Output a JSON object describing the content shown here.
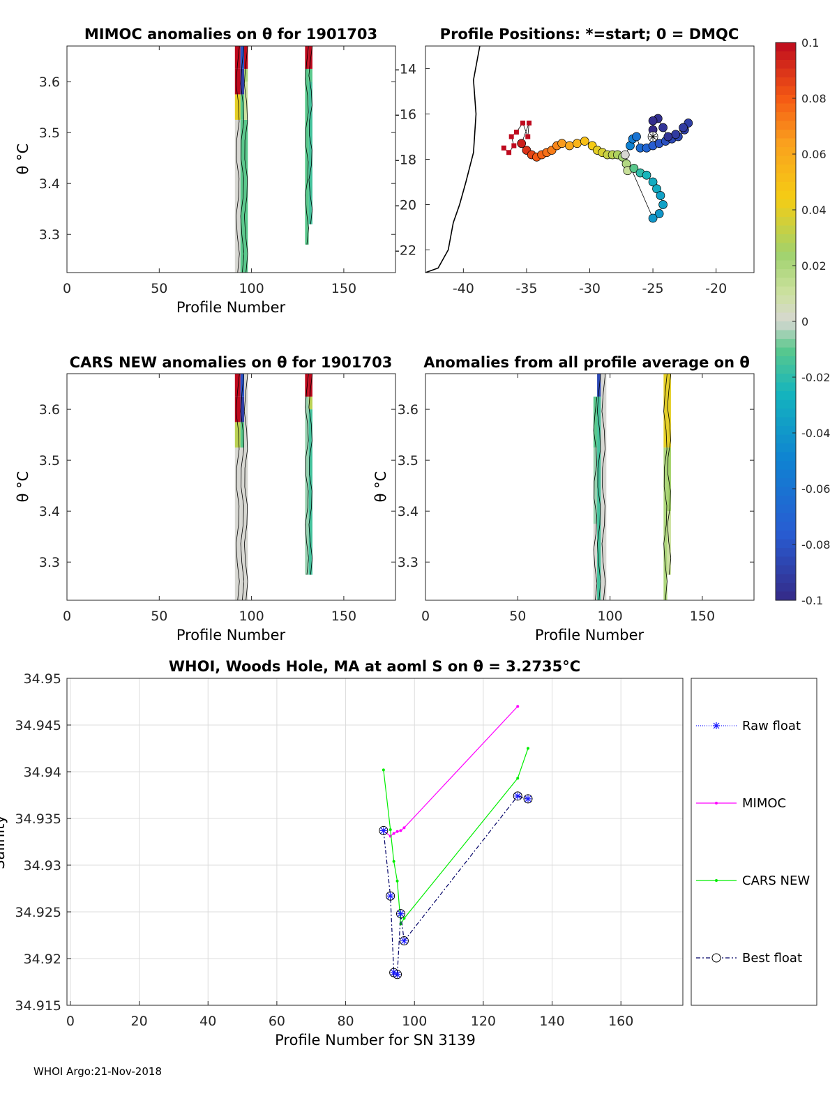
{
  "footer": "WHOI Argo:21-Nov-2018",
  "colors": {
    "raw": "#1a1aff",
    "mimoc": "#ff00ff",
    "cars": "#00ee00",
    "best": "#000066",
    "axis": "#262626",
    "grid": "#dcdcdc"
  },
  "colorbar": {
    "ticks": [
      "0.1",
      "0.08",
      "0.06",
      "0.04",
      "0.02",
      "0",
      "-0.02",
      "-0.04",
      "-0.06",
      "-0.08",
      "-0.1"
    ],
    "range": [
      -0.1,
      0.1
    ]
  },
  "panels": {
    "mimoc": {
      "title": "MIMOC anomalies on θ  for 1901703",
      "xlabel": "Profile Number",
      "ylabel": "θ °C"
    },
    "map": {
      "title": "Profile Positions: *=start; 0 = DMQC"
    },
    "cars": {
      "title": "CARS NEW anomalies on θ for 1901703",
      "xlabel": "Profile Number",
      "ylabel": "θ °C"
    },
    "avg": {
      "title": "Anomalies from all profile average on θ",
      "xlabel": "Profile Number",
      "ylabel": "θ °C"
    },
    "salinity": {
      "title": "WHOI, Woods Hole, MA at aoml S on θ = 3.2735°C",
      "xlabel": "Profile Number for SN 3139",
      "ylabel": "Salinity"
    }
  },
  "legend": [
    "Raw float",
    "MIMOC",
    "CARS NEW",
    "Best float"
  ],
  "chart_data": [
    {
      "type": "heatmap",
      "name_ref": "mimoc",
      "xlim": [
        0,
        178
      ],
      "ylim": [
        3.225,
        3.67
      ],
      "xticks": [
        "0",
        "50",
        "100",
        "150"
      ],
      "yticks": [
        "3.3",
        "3.4",
        "3.5",
        "3.6"
      ],
      "columns": [
        {
          "x": [
            91,
            94
          ],
          "cells": [
            [
              3.225,
              3.525,
              0.0
            ],
            [
              3.525,
              3.575,
              0.04
            ],
            [
              3.575,
              3.625,
              0.1
            ],
            [
              3.625,
              3.67,
              0.1
            ]
          ]
        },
        {
          "x": [
            94,
            96
          ],
          "cells": [
            [
              3.225,
              3.525,
              -0.01
            ],
            [
              3.525,
              3.575,
              -0.01
            ],
            [
              3.575,
              3.625,
              -0.09
            ],
            [
              3.625,
              3.67,
              -0.08
            ]
          ]
        },
        {
          "x": [
            96,
            98
          ],
          "cells": [
            [
              3.225,
              3.525,
              -0.01
            ],
            [
              3.525,
              3.6,
              0.01
            ],
            [
              3.6,
              3.625,
              0.02
            ],
            [
              3.625,
              3.67,
              0.1
            ]
          ]
        },
        {
          "x": [
            129,
            131
          ],
          "cells": [
            [
              3.28,
              3.625,
              -0.01
            ],
            [
              3.625,
              3.67,
              0.1
            ]
          ]
        },
        {
          "x": [
            131,
            133
          ],
          "cells": [
            [
              3.32,
              3.6,
              -0.015
            ],
            [
              3.6,
              3.625,
              -0.01
            ],
            [
              3.625,
              3.67,
              0.1
            ]
          ]
        }
      ]
    },
    {
      "type": "scatter",
      "name_ref": "map",
      "xlim": [
        -43,
        -17
      ],
      "ylim": [
        -23,
        -13
      ],
      "xticks": [
        "-40",
        "-35",
        "-30",
        "-25",
        "-20"
      ],
      "yticks": [
        "-14",
        "-16",
        "-18",
        "-20",
        "-22"
      ],
      "coastline": [
        [
          -38.7,
          -13
        ],
        [
          -39.2,
          -14.5
        ],
        [
          -39.0,
          -16
        ],
        [
          -39.2,
          -17.7
        ],
        [
          -39.8,
          -19
        ],
        [
          -40.3,
          -20
        ],
        [
          -40.8,
          -20.8
        ],
        [
          -41.2,
          -22
        ],
        [
          -42.0,
          -22.8
        ],
        [
          -43.0,
          -23
        ]
      ],
      "track": [
        [
          -36.8,
          -17.5,
          0.1
        ],
        [
          -36.4,
          -17.7,
          0.1
        ],
        [
          -36.0,
          -17.4,
          0.1
        ],
        [
          -36.2,
          -17.0,
          0.1
        ],
        [
          -35.8,
          -16.8,
          0.1
        ],
        [
          -35.3,
          -16.4,
          0.1
        ],
        [
          -34.9,
          -17.0,
          0.1
        ],
        [
          -34.8,
          -16.4,
          0.1
        ],
        [
          -35.4,
          -17.3,
          0.095
        ],
        [
          -35.0,
          -17.6,
          0.09
        ],
        [
          -34.6,
          -17.8,
          0.085
        ],
        [
          -34.2,
          -17.9,
          0.08
        ],
        [
          -33.8,
          -17.8,
          0.078
        ],
        [
          -33.4,
          -17.7,
          0.075
        ],
        [
          -33.0,
          -17.6,
          0.072
        ],
        [
          -32.6,
          -17.4,
          0.07
        ],
        [
          -32.2,
          -17.3,
          0.065
        ],
        [
          -31.6,
          -17.4,
          0.06
        ],
        [
          -31.0,
          -17.3,
          0.055
        ],
        [
          -30.4,
          -17.2,
          0.05
        ],
        [
          -29.8,
          -17.4,
          0.045
        ],
        [
          -29.4,
          -17.6,
          0.04
        ],
        [
          -29.0,
          -17.7,
          0.037
        ],
        [
          -28.6,
          -17.8,
          0.033
        ],
        [
          -28.2,
          -17.8,
          0.03
        ],
        [
          -27.8,
          -17.8,
          0.027
        ],
        [
          -27.4,
          -17.9,
          0.023
        ],
        [
          -27.1,
          -18.2,
          0.018
        ],
        [
          -27.0,
          -18.5,
          0.012
        ],
        [
          -26.5,
          -18.4,
          -0.01
        ],
        [
          -26.0,
          -18.6,
          -0.02
        ],
        [
          -25.5,
          -18.7,
          -0.025
        ],
        [
          -25.0,
          -19.0,
          -0.03
        ],
        [
          -24.7,
          -19.3,
          -0.03
        ],
        [
          -24.4,
          -19.6,
          -0.035
        ],
        [
          -24.2,
          -20.0,
          -0.035
        ],
        [
          -24.5,
          -20.4,
          -0.04
        ],
        [
          -25.0,
          -20.6,
          -0.04
        ],
        [
          -27.2,
          -17.8,
          0.0
        ],
        [
          -26.8,
          -17.4,
          -0.05
        ],
        [
          -26.6,
          -17.1,
          -0.055
        ],
        [
          -26.3,
          -17.0,
          -0.06
        ],
        [
          -26.0,
          -17.5,
          -0.065
        ],
        [
          -25.5,
          -17.5,
          -0.07
        ],
        [
          -25.0,
          -17.4,
          -0.075
        ],
        [
          -24.5,
          -17.3,
          -0.08
        ],
        [
          -24.0,
          -17.2,
          -0.082
        ],
        [
          -23.5,
          -17.1,
          -0.085
        ],
        [
          -23.0,
          -17.0,
          -0.085
        ],
        [
          -22.5,
          -16.7,
          -0.09
        ],
        [
          -22.2,
          -16.4,
          -0.09
        ],
        [
          -22.6,
          -16.6,
          -0.092
        ],
        [
          -23.2,
          -16.9,
          -0.092
        ],
        [
          -23.8,
          -17.0,
          -0.095
        ],
        [
          -24.2,
          -16.6,
          -0.095
        ],
        [
          -24.6,
          -16.2,
          -0.097
        ],
        [
          -25.0,
          -16.3,
          -0.098
        ],
        [
          -25.0,
          -16.7,
          -0.1
        ]
      ],
      "start": [
        -25.0,
        -17.0
      ]
    },
    {
      "type": "heatmap",
      "name_ref": "cars",
      "xlim": [
        0,
        178
      ],
      "ylim": [
        3.225,
        3.67
      ],
      "xticks": [
        "0",
        "50",
        "100",
        "150"
      ],
      "yticks": [
        "3.3",
        "3.4",
        "3.5",
        "3.6"
      ],
      "columns": [
        {
          "x": [
            91,
            94
          ],
          "cells": [
            [
              3.225,
              3.525,
              0.0
            ],
            [
              3.525,
              3.575,
              0.03
            ],
            [
              3.575,
              3.625,
              0.1
            ],
            [
              3.625,
              3.67,
              0.1
            ]
          ]
        },
        {
          "x": [
            94,
            96
          ],
          "cells": [
            [
              3.225,
              3.525,
              0.0
            ],
            [
              3.525,
              3.575,
              -0.01
            ],
            [
              3.575,
              3.625,
              -0.09
            ],
            [
              3.625,
              3.67,
              -0.08
            ]
          ]
        },
        {
          "x": [
            96,
            98
          ],
          "cells": [
            [
              3.225,
              3.67,
              0.0
            ]
          ]
        },
        {
          "x": [
            129,
            131
          ],
          "cells": [
            [
              3.275,
              3.625,
              -0.005
            ],
            [
              3.625,
              3.67,
              0.1
            ]
          ]
        },
        {
          "x": [
            131,
            133
          ],
          "cells": [
            [
              3.275,
              3.6,
              -0.015
            ],
            [
              3.6,
              3.625,
              0.03
            ],
            [
              3.625,
              3.67,
              0.1
            ]
          ]
        }
      ]
    },
    {
      "type": "heatmap",
      "name_ref": "avg",
      "xlim": [
        0,
        178
      ],
      "ylim": [
        3.225,
        3.67
      ],
      "xticks": [
        "0",
        "50",
        "100",
        "150"
      ],
      "yticks": [
        "3.3",
        "3.4",
        "3.5",
        "3.6"
      ],
      "columns": [
        {
          "x": [
            91,
            93
          ],
          "cells": [
            [
              3.225,
              3.375,
              0.0
            ],
            [
              3.375,
              3.525,
              -0.005
            ],
            [
              3.525,
              3.625,
              -0.01
            ]
          ]
        },
        {
          "x": [
            93,
            95
          ],
          "cells": [
            [
              3.225,
              3.625,
              -0.015
            ],
            [
              3.625,
              3.67,
              -0.085
            ]
          ]
        },
        {
          "x": [
            95,
            98
          ],
          "cells": [
            [
              3.225,
              3.67,
              0.0
            ]
          ]
        },
        {
          "x": [
            129,
            131
          ],
          "cells": [
            [
              3.225,
              3.525,
              0.02
            ],
            [
              3.525,
              3.67,
              0.04
            ]
          ]
        },
        {
          "x": [
            131,
            133
          ],
          "cells": [
            [
              3.275,
              3.4,
              0.01
            ],
            [
              3.4,
              3.525,
              0.025
            ],
            [
              3.525,
              3.67,
              0.04
            ]
          ]
        }
      ]
    },
    {
      "type": "line",
      "name_ref": "salinity",
      "xlim": [
        -1,
        178
      ],
      "ylim": [
        34.915,
        34.95
      ],
      "xticks": [
        0,
        20,
        40,
        60,
        80,
        100,
        120,
        140,
        160
      ],
      "yticks": [
        "34.915",
        "34.92",
        "34.925",
        "34.93",
        "34.935",
        "34.94",
        "34.945",
        "34.95"
      ],
      "grid": true,
      "series": [
        {
          "name": "Raw float",
          "x": [
            91,
            93,
            94,
            95,
            96,
            97,
            130,
            133
          ],
          "y": [
            34.9337,
            34.9267,
            34.9185,
            34.9183,
            34.9248,
            34.9219,
            34.9374,
            34.9371
          ]
        },
        {
          "name": "MIMOC",
          "x": [
            91,
            93,
            94,
            95,
            96,
            97,
            130
          ],
          "y": [
            34.9337,
            34.9331,
            34.9334,
            34.9336,
            34.9337,
            34.934,
            34.947
          ]
        },
        {
          "name": "CARS NEW",
          "x": [
            91,
            93,
            94,
            95,
            96,
            97,
            130,
            133
          ],
          "y": [
            34.9402,
            34.9338,
            34.9304,
            34.9283,
            34.9237,
            34.9243,
            34.9393,
            34.9425
          ]
        },
        {
          "name": "Best float",
          "x": [
            91,
            93,
            94,
            95,
            96,
            97,
            130,
            133
          ],
          "y": [
            34.9337,
            34.9267,
            34.9185,
            34.9183,
            34.9248,
            34.9219,
            34.9374,
            34.9371
          ]
        }
      ]
    }
  ]
}
